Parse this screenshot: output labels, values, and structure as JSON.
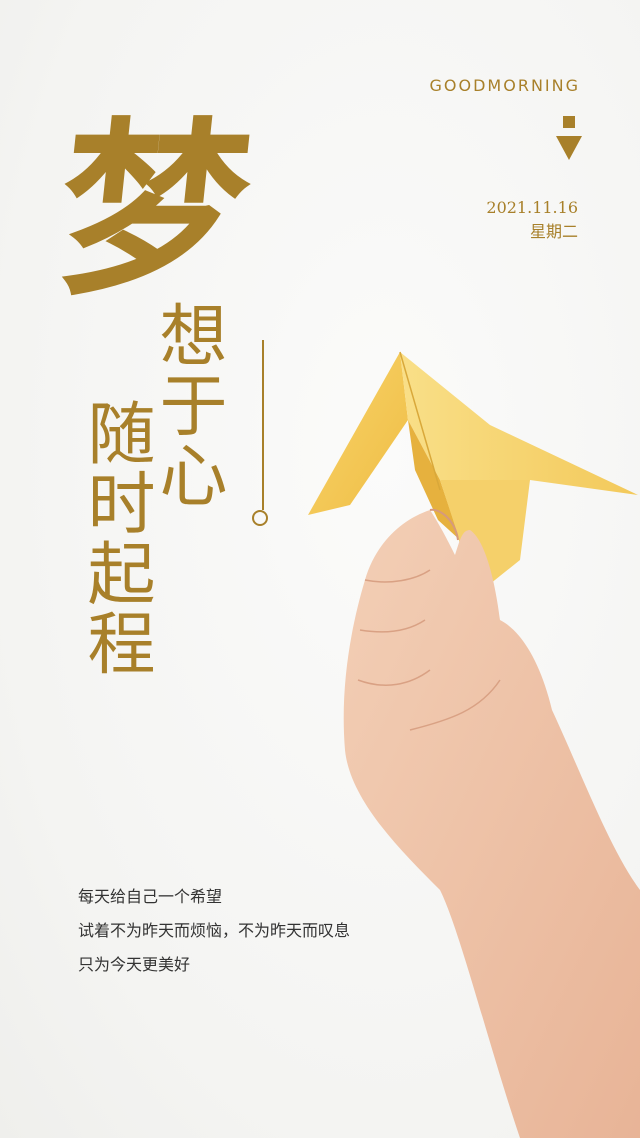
{
  "header": {
    "greeting": "GOODMORNING",
    "date": "2021.11.16",
    "weekday": "星期二"
  },
  "title": {
    "big_char": "梦",
    "column_1": "想于心",
    "column_2": "随时起程"
  },
  "body": {
    "lines": [
      "每天给自己一个希望",
      "试着不为昨天而烦恼，不为昨天而叹息",
      "只为今天更美好"
    ]
  },
  "image": {
    "description_icon": "paper-crane-hand-illustration"
  },
  "colors": {
    "accent": "#a8802a",
    "background": "#f6f6f4",
    "paper": "#f3c752",
    "skin": "#eec2a6"
  }
}
